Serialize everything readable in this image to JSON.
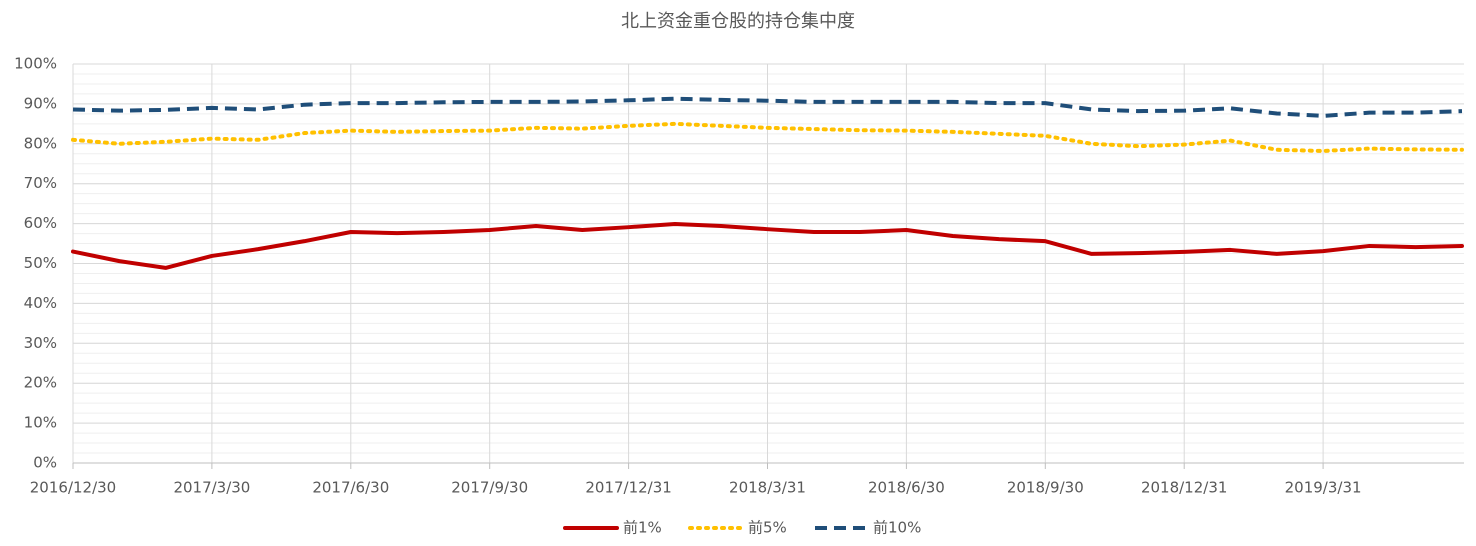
{
  "chart_data": {
    "type": "line",
    "title": "北上资金重仓股的持仓集中度",
    "categories": [
      "2016/12/30",
      null,
      null,
      "2017/3/30",
      null,
      null,
      "2017/6/30",
      null,
      null,
      "2017/9/30",
      null,
      null,
      "2017/12/31",
      null,
      null,
      "2018/3/31",
      null,
      null,
      "2018/6/30",
      null,
      null,
      "2018/9/30",
      null,
      null,
      "2018/12/31",
      null,
      null,
      "2019/3/31",
      null,
      null,
      null
    ],
    "ylim": [
      0,
      100
    ],
    "yticks": [
      {
        "value": 0,
        "label": "0%"
      },
      {
        "value": 10,
        "label": "10%"
      },
      {
        "value": 20,
        "label": "20%"
      },
      {
        "value": 30,
        "label": "30%"
      },
      {
        "value": 40,
        "label": "40%"
      },
      {
        "value": 50,
        "label": "50%"
      },
      {
        "value": 60,
        "label": "60%"
      },
      {
        "value": 70,
        "label": "70%"
      },
      {
        "value": 80,
        "label": "80%"
      },
      {
        "value": 90,
        "label": "90%"
      },
      {
        "value": 100,
        "label": "100%"
      }
    ],
    "grid": true,
    "legend": "bottom",
    "series": [
      {
        "name": "前1%",
        "color": "#c00000",
        "line_style": "solid",
        "values": [
          53,
          50.6,
          48.9,
          51.9,
          53.6,
          55.6,
          57.9,
          57.6,
          57.9,
          58.4,
          59.4,
          58.4,
          59.1,
          59.9,
          59.4,
          58.6,
          57.9,
          57.9,
          58.4,
          56.9,
          56.1,
          55.6,
          52.4,
          52.6,
          52.9,
          53.4,
          52.4,
          53.1,
          54.4,
          54.1,
          54.4
        ]
      },
      {
        "name": "前5%",
        "color": "#ffc000",
        "line_style": "dotted",
        "values": [
          81,
          80,
          80.5,
          81.3,
          81,
          82.7,
          83.3,
          83,
          83.2,
          83.3,
          84,
          83.8,
          84.5,
          85,
          84.5,
          84,
          83.7,
          83.4,
          83.3,
          83,
          82.5,
          82,
          80,
          79.4,
          79.8,
          80.8,
          78.5,
          78.2,
          78.8,
          78.6,
          78.5
        ]
      },
      {
        "name": "前10%",
        "color": "#1f4e79",
        "line_style": "dashed",
        "values": [
          88.6,
          88.3,
          88.5,
          89,
          88.6,
          89.8,
          90.2,
          90.2,
          90.4,
          90.5,
          90.5,
          90.6,
          90.9,
          91.3,
          91,
          90.8,
          90.5,
          90.5,
          90.5,
          90.5,
          90.2,
          90.2,
          88.6,
          88.2,
          88.3,
          88.9,
          87.6,
          87,
          87.8,
          87.8,
          88.2
        ]
      }
    ]
  }
}
